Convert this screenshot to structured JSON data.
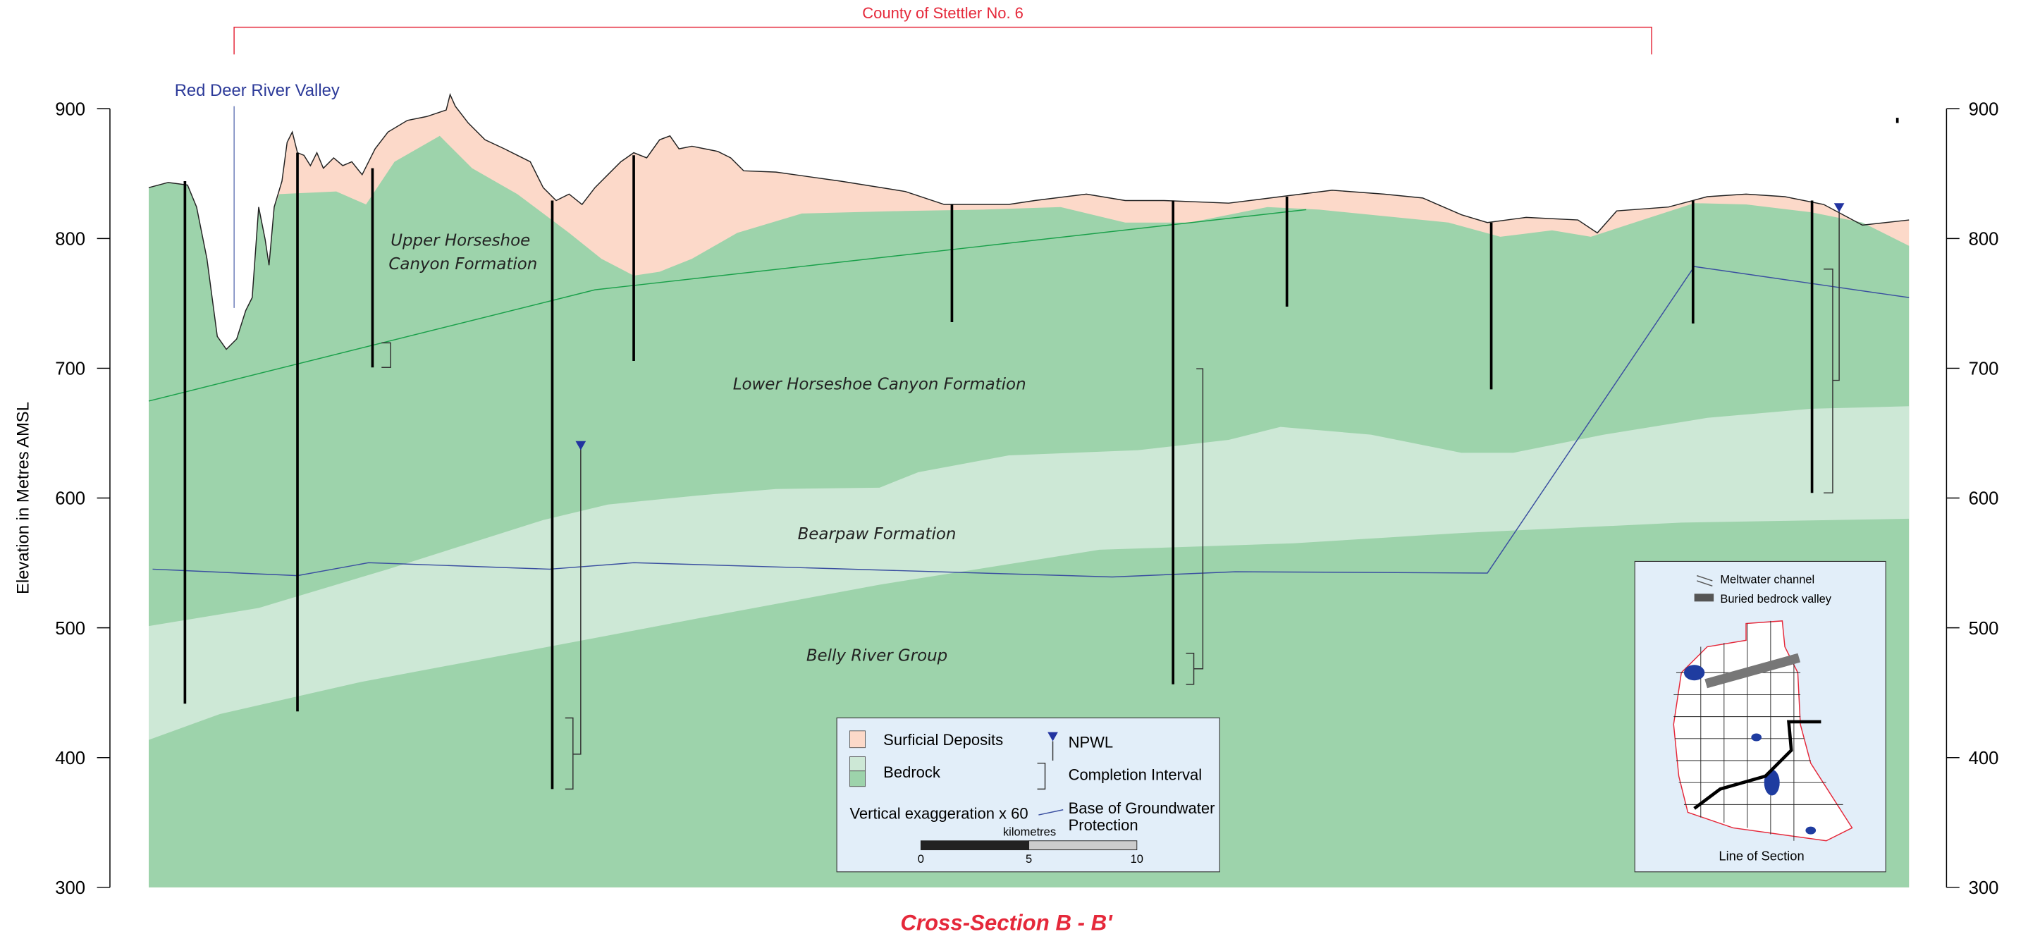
{
  "header": {
    "title": "County of Stettler No. 6"
  },
  "annotations": {
    "valley": "Red Deer River Valley"
  },
  "axis": {
    "label": "Elevation in Metres AMSL",
    "ylim": [
      300,
      900
    ],
    "yticks": [
      300,
      400,
      500,
      600,
      700,
      800,
      900
    ]
  },
  "formations": {
    "upper": [
      "Upper Horseshoe",
      "Canyon Formation"
    ],
    "lower": "Lower Horseshoe Canyon Formation",
    "bearpaw": "Bearpaw Formation",
    "belly": "Belly River Group"
  },
  "legend": {
    "surficial": "Surficial Deposits",
    "bedrock": "Bedrock",
    "npwl": "NPWL",
    "completion": "Completion Interval",
    "exaggeration": "Vertical exaggeration x 60",
    "base": [
      "Base of Groundwater",
      "Protection"
    ],
    "scale_unit": "kilometres",
    "scale_ticks": [
      0,
      5,
      10
    ]
  },
  "inset": {
    "meltwater": "Meltwater channel",
    "buried": "Buried bedrock valley",
    "caption": "Line of Section"
  },
  "footer": {
    "title": "Cross-Section B - B'"
  }
}
